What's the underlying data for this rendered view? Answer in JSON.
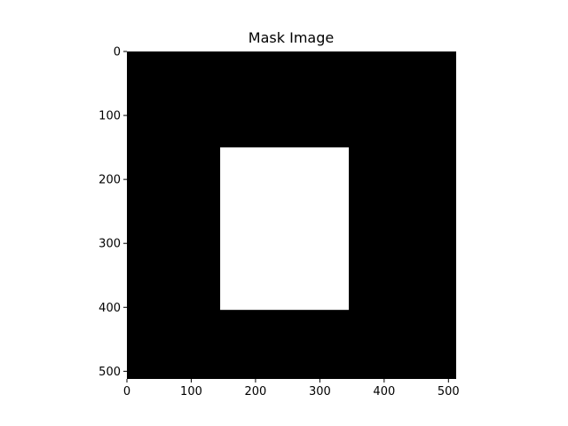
{
  "chart_data": {
    "type": "heatmap",
    "title": "Mask Image",
    "xlabel": "",
    "ylabel": "",
    "image_size": [
      512,
      512
    ],
    "colormap": "gray",
    "background_value": 0,
    "regions": [
      {
        "value": 1,
        "x_range": [
          145,
          345
        ],
        "y_range": [
          150,
          404
        ]
      }
    ],
    "xlim": [
      0,
      512
    ],
    "ylim": [
      512,
      0
    ],
    "x_ticks": [
      0,
      100,
      200,
      300,
      400,
      500
    ],
    "x_tick_labels": [
      "0",
      "100",
      "200",
      "300",
      "400",
      "500"
    ],
    "y_ticks": [
      0,
      100,
      200,
      300,
      400,
      500
    ],
    "y_tick_labels": [
      "0",
      "100",
      "200",
      "300",
      "400",
      "500"
    ],
    "grid": false,
    "colors": {
      "background": "#000000",
      "mask": "#ffffff"
    }
  }
}
